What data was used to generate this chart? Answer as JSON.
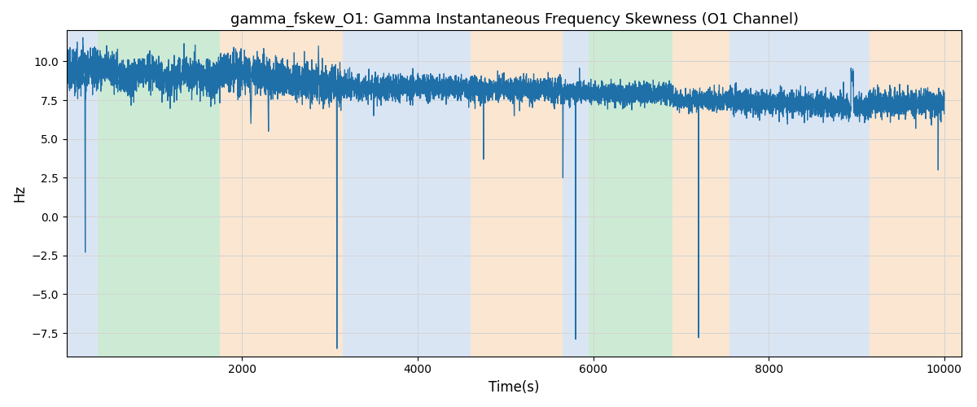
{
  "title": "gamma_fskew_O1: Gamma Instantaneous Frequency Skewness (O1 Channel)",
  "xlabel": "Time(s)",
  "ylabel": "Hz",
  "xlim": [
    0,
    10200
  ],
  "ylim": [
    -9,
    12
  ],
  "yticks": [
    -7.5,
    -5.0,
    -2.5,
    0.0,
    2.5,
    5.0,
    7.5,
    10.0
  ],
  "xticks": [
    2000,
    4000,
    6000,
    8000,
    10000
  ],
  "line_color": "#1f6fa8",
  "line_width": 0.9,
  "bg_regions": [
    {
      "xstart": 0,
      "xend": 350,
      "color": "#aec6e8",
      "alpha": 0.45
    },
    {
      "xstart": 350,
      "xend": 1750,
      "color": "#90d4a0",
      "alpha": 0.45
    },
    {
      "xstart": 1750,
      "xend": 3150,
      "color": "#f5c89a",
      "alpha": 0.45
    },
    {
      "xstart": 3150,
      "xend": 4600,
      "color": "#aec6e8",
      "alpha": 0.45
    },
    {
      "xstart": 4600,
      "xend": 5650,
      "color": "#f5c89a",
      "alpha": 0.45
    },
    {
      "xstart": 5650,
      "xend": 5950,
      "color": "#aec6e8",
      "alpha": 0.45
    },
    {
      "xstart": 5950,
      "xend": 6900,
      "color": "#90d4a0",
      "alpha": 0.45
    },
    {
      "xstart": 6900,
      "xend": 7550,
      "color": "#f5c89a",
      "alpha": 0.45
    },
    {
      "xstart": 7550,
      "xend": 9150,
      "color": "#aec6e8",
      "alpha": 0.45
    },
    {
      "xstart": 9150,
      "xend": 10200,
      "color": "#f5c89a",
      "alpha": 0.45
    }
  ],
  "seed": 42,
  "n_points": 10000,
  "t_start": 0,
  "t_end": 10000
}
